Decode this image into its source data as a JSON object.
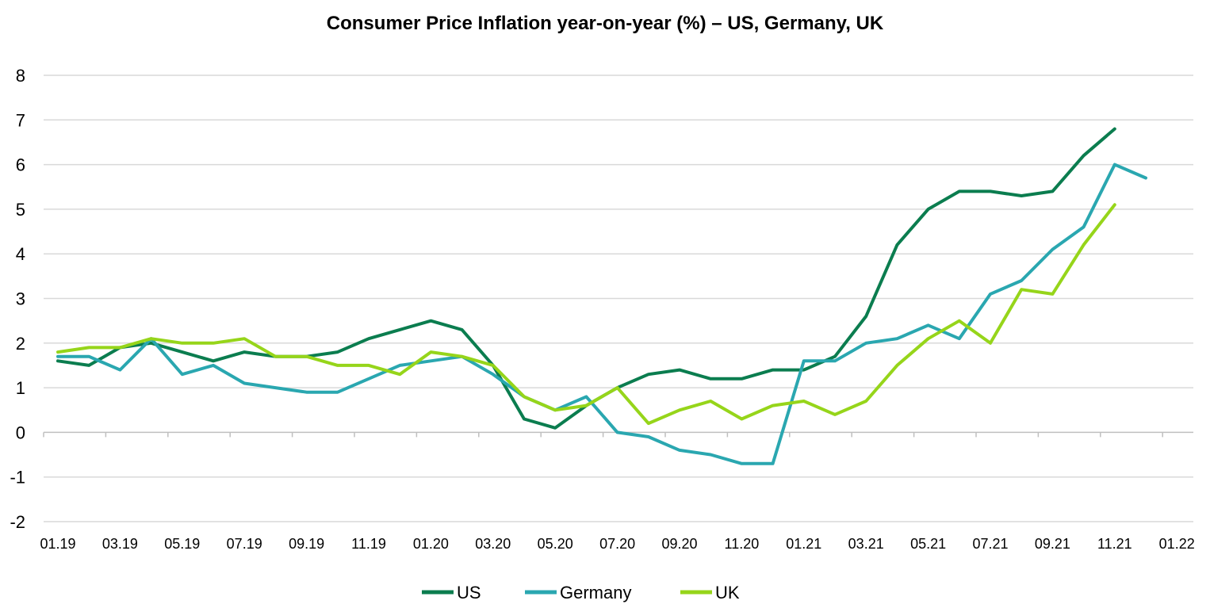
{
  "chart_data": {
    "type": "line",
    "title": "Consumer Price Inflation year-on-year (%) – US, Germany, UK",
    "xlabel": "",
    "ylabel": "",
    "ylim": [
      -2,
      8
    ],
    "yticks": [
      "8",
      "7",
      "6",
      "5",
      "4",
      "3",
      "2",
      "1",
      "0",
      "-1",
      "-2"
    ],
    "x_tick_labels": [
      "01.19",
      "03.19",
      "05.19",
      "07.19",
      "09.19",
      "11.19",
      "01.20",
      "03.20",
      "05.20",
      "07.20",
      "09.20",
      "11.20",
      "01.21",
      "03.21",
      "05.21",
      "07.21",
      "09.21",
      "11.21",
      "01.22"
    ],
    "grid": "horizontal",
    "legend_position": "bottom",
    "x": [
      "01.19",
      "02.19",
      "03.19",
      "04.19",
      "05.19",
      "06.19",
      "07.19",
      "08.19",
      "09.19",
      "10.19",
      "11.19",
      "12.19",
      "01.20",
      "02.20",
      "03.20",
      "04.20",
      "05.20",
      "06.20",
      "07.20",
      "08.20",
      "09.20",
      "10.20",
      "11.20",
      "12.20",
      "01.21",
      "02.21",
      "03.21",
      "04.21",
      "05.21",
      "06.21",
      "07.21",
      "08.21",
      "09.21",
      "10.21",
      "11.21",
      "12.21"
    ],
    "series": [
      {
        "name": "US",
        "color": "#0b7d4f",
        "values": [
          1.6,
          1.5,
          1.9,
          2.0,
          1.8,
          1.6,
          1.8,
          1.7,
          1.7,
          1.8,
          2.1,
          2.3,
          2.5,
          2.3,
          1.5,
          0.3,
          0.1,
          0.6,
          1.0,
          1.3,
          1.4,
          1.2,
          1.2,
          1.4,
          1.4,
          1.7,
          2.6,
          4.2,
          5.0,
          5.4,
          5.4,
          5.3,
          5.4,
          6.2,
          6.8,
          null
        ]
      },
      {
        "name": "Germany",
        "color": "#2aa7b0",
        "values": [
          1.7,
          1.7,
          1.4,
          2.1,
          1.3,
          1.5,
          1.1,
          1.0,
          0.9,
          0.9,
          1.2,
          1.5,
          1.6,
          1.7,
          1.3,
          0.8,
          0.5,
          0.8,
          0.0,
          -0.1,
          -0.4,
          -0.5,
          -0.7,
          -0.7,
          1.6,
          1.6,
          2.0,
          2.1,
          2.4,
          2.1,
          3.1,
          3.4,
          4.1,
          4.6,
          6.0,
          5.7
        ]
      },
      {
        "name": "UK",
        "color": "#96d51a",
        "values": [
          1.8,
          1.9,
          1.9,
          2.1,
          2.0,
          2.0,
          2.1,
          1.7,
          1.7,
          1.5,
          1.5,
          1.3,
          1.8,
          1.7,
          1.5,
          0.8,
          0.5,
          0.6,
          1.0,
          0.2,
          0.5,
          0.7,
          0.3,
          0.6,
          0.7,
          0.4,
          0.7,
          1.5,
          2.1,
          2.5,
          2.0,
          3.2,
          3.1,
          4.2,
          5.1,
          null
        ]
      }
    ]
  }
}
